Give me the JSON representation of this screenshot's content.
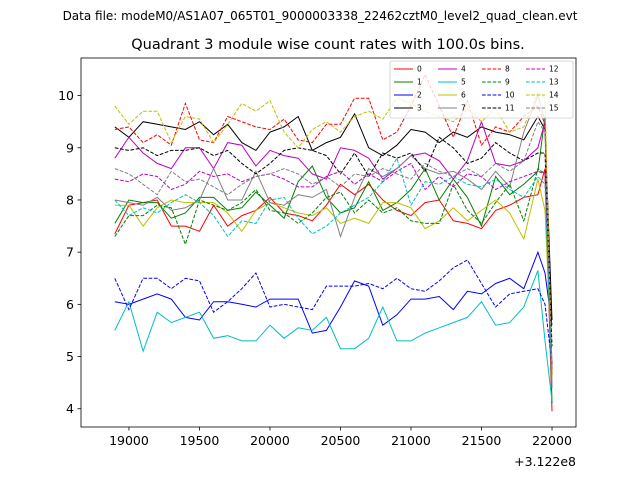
{
  "figure": {
    "suptitle": "Data file: modeM0/AS1A07_065T01_9000003338_22462cztM0_level2_quad_clean.evt"
  },
  "chart_data": {
    "type": "line",
    "title": "Quadrant 3 module wise count rates with 100.0s bins.",
    "xlabel": "",
    "ylabel": "",
    "x_offset_label": "+3.122e8",
    "xlim": [
      18660,
      22170
    ],
    "ylim": [
      3.65,
      10.72
    ],
    "xticks": [
      19000,
      19500,
      20000,
      20500,
      21000,
      21500,
      22000
    ],
    "xtick_labels": [
      "19000",
      "19500",
      "20000",
      "20500",
      "21000",
      "21500",
      "22000"
    ],
    "yticks": [
      4,
      5,
      6,
      7,
      8,
      9,
      10
    ],
    "ytick_labels": [
      "4",
      "5",
      "6",
      "7",
      "8",
      "9",
      "10"
    ],
    "grid": false,
    "legend_position": "top-right",
    "x": [
      18900,
      19000,
      19100,
      19200,
      19300,
      19400,
      19500,
      19600,
      19700,
      19800,
      19900,
      20000,
      20100,
      20200,
      20300,
      20400,
      20500,
      20600,
      20700,
      20800,
      20900,
      21000,
      21100,
      21200,
      21300,
      21400,
      21500,
      21600,
      21700,
      21800,
      21900,
      21950,
      22000
    ],
    "series": [
      {
        "name": "0",
        "color": "#ff0000",
        "dash": "solid",
        "values": [
          7.35,
          7.9,
          7.95,
          8.0,
          7.5,
          7.5,
          7.4,
          7.9,
          7.5,
          7.7,
          7.8,
          8.05,
          7.75,
          7.7,
          7.6,
          7.9,
          8.3,
          8.1,
          8.3,
          8.0,
          7.8,
          7.7,
          7.95,
          8.0,
          7.6,
          7.55,
          7.45,
          7.8,
          7.9,
          8.05,
          8.1,
          8.6,
          3.95
        ]
      },
      {
        "name": "1",
        "color": "#008000",
        "dash": "solid",
        "values": [
          7.55,
          8.0,
          7.95,
          7.95,
          7.65,
          7.75,
          8.05,
          8.05,
          7.8,
          7.85,
          8.15,
          7.9,
          7.65,
          8.35,
          8.65,
          8.05,
          7.75,
          7.85,
          8.35,
          7.8,
          7.95,
          8.2,
          8.6,
          8.0,
          8.4,
          8.05,
          7.5,
          8.45,
          8.1,
          8.3,
          8.55,
          9.6,
          4.1
        ]
      },
      {
        "name": "2",
        "color": "#0000ff",
        "dash": "solid",
        "values": [
          6.05,
          6.0,
          6.1,
          6.2,
          6.1,
          5.75,
          5.7,
          6.05,
          6.05,
          6.0,
          5.95,
          6.1,
          6.1,
          6.1,
          5.45,
          5.5,
          5.95,
          6.45,
          6.35,
          5.6,
          5.8,
          6.1,
          6.1,
          6.15,
          5.9,
          6.25,
          6.2,
          6.4,
          6.5,
          6.3,
          7.0,
          6.6,
          5.6
        ]
      },
      {
        "name": "3",
        "color": "#000000",
        "dash": "solid",
        "values": [
          9.4,
          9.2,
          9.5,
          9.45,
          9.4,
          9.35,
          9.5,
          9.25,
          9.45,
          9.1,
          8.95,
          9.3,
          9.4,
          9.6,
          8.95,
          9.1,
          9.2,
          9.65,
          9.0,
          8.85,
          9.05,
          9.35,
          9.3,
          9.1,
          9.3,
          9.2,
          9.4,
          9.3,
          9.25,
          9.15,
          9.6,
          9.35,
          5.7
        ]
      },
      {
        "name": "4",
        "color": "#c000c0",
        "dash": "solid",
        "values": [
          8.8,
          9.2,
          8.9,
          8.7,
          8.6,
          9.0,
          9.0,
          8.6,
          9.1,
          9.05,
          8.65,
          8.95,
          8.85,
          8.8,
          8.5,
          8.4,
          9.0,
          8.95,
          8.8,
          8.4,
          8.6,
          8.85,
          8.9,
          8.75,
          8.4,
          8.75,
          9.5,
          8.7,
          8.65,
          8.75,
          9.0,
          9.5,
          4.8
        ]
      },
      {
        "name": "5",
        "color": "#00bfbf",
        "dash": "solid",
        "values": [
          5.5,
          6.05,
          5.1,
          5.85,
          5.65,
          5.75,
          5.85,
          5.35,
          5.4,
          5.3,
          5.3,
          5.6,
          5.35,
          5.55,
          5.5,
          5.75,
          5.15,
          5.15,
          5.35,
          5.95,
          5.3,
          5.3,
          5.45,
          5.55,
          5.65,
          5.75,
          6.05,
          5.6,
          5.65,
          5.95,
          6.65,
          5.3,
          4.15
        ]
      },
      {
        "name": "6",
        "color": "#bfbf00",
        "dash": "solid",
        "values": [
          7.9,
          7.9,
          7.5,
          7.85,
          8.0,
          7.95,
          7.95,
          7.95,
          7.75,
          7.4,
          7.8,
          7.95,
          7.85,
          7.75,
          7.7,
          7.85,
          7.55,
          7.65,
          7.55,
          7.95,
          7.95,
          7.85,
          7.45,
          7.6,
          7.85,
          7.6,
          7.8,
          8.0,
          7.75,
          7.25,
          8.4,
          7.8,
          4.75
        ]
      },
      {
        "name": "7",
        "color": "#808080",
        "dash": "solid",
        "values": [
          8.0,
          7.95,
          7.9,
          8.05,
          7.8,
          7.85,
          8.0,
          8.6,
          8.0,
          8.0,
          8.55,
          7.95,
          7.9,
          8.1,
          8.05,
          8.2,
          7.3,
          8.05,
          8.6,
          8.45,
          8.6,
          8.85,
          8.6,
          8.5,
          8.55,
          8.4,
          8.2,
          8.55,
          8.25,
          9.3,
          10.0,
          9.5,
          4.4
        ]
      },
      {
        "name": "8",
        "color": "#ff0000",
        "dash": "dashed",
        "values": [
          9.35,
          9.4,
          9.1,
          9.25,
          9.05,
          9.85,
          9.15,
          9.1,
          9.6,
          9.5,
          9.4,
          9.35,
          9.55,
          9.15,
          9.1,
          9.45,
          9.45,
          9.95,
          9.95,
          9.15,
          9.3,
          9.8,
          10.4,
          9.8,
          9.2,
          9.9,
          9.05,
          9.4,
          9.3,
          9.6,
          9.8,
          9.45,
          4.65
        ]
      },
      {
        "name": "9",
        "color": "#008000",
        "dash": "dashed",
        "values": [
          7.3,
          7.7,
          7.7,
          7.9,
          7.85,
          7.15,
          8.0,
          7.9,
          7.8,
          7.95,
          8.2,
          7.8,
          7.75,
          7.55,
          7.75,
          8.05,
          8.15,
          7.75,
          8.0,
          7.75,
          7.85,
          7.6,
          7.55,
          7.55,
          8.3,
          7.8,
          7.55,
          7.95,
          8.3,
          7.6,
          8.6,
          8.5,
          4.75
        ]
      },
      {
        "name": "10",
        "color": "#0000ff",
        "dash": "dashed",
        "values": [
          6.5,
          5.9,
          6.5,
          6.5,
          6.3,
          6.5,
          6.45,
          5.85,
          6.05,
          6.3,
          6.6,
          5.95,
          6.0,
          5.95,
          5.9,
          6.35,
          6.35,
          6.35,
          6.4,
          6.3,
          6.5,
          6.3,
          6.25,
          6.45,
          6.7,
          6.85,
          6.4,
          5.95,
          6.2,
          6.25,
          6.3,
          6.0,
          4.85
        ]
      },
      {
        "name": "11",
        "color": "#000000",
        "dash": "dashed",
        "values": [
          9.0,
          8.95,
          9.0,
          8.85,
          8.95,
          8.95,
          9.0,
          8.85,
          8.95,
          8.7,
          8.5,
          8.7,
          8.95,
          9.0,
          8.95,
          8.85,
          8.5,
          8.9,
          8.45,
          8.9,
          8.8,
          8.9,
          8.55,
          9.2,
          9.0,
          8.7,
          8.8,
          9.1,
          8.9,
          8.75,
          8.9,
          8.9,
          5.2
        ]
      },
      {
        "name": "12",
        "color": "#c000c0",
        "dash": "dashed",
        "values": [
          8.4,
          8.35,
          8.5,
          8.45,
          8.2,
          8.3,
          8.55,
          8.45,
          8.5,
          8.35,
          8.45,
          8.5,
          8.4,
          8.25,
          8.25,
          8.45,
          8.55,
          8.3,
          8.5,
          8.35,
          8.55,
          8.7,
          8.2,
          8.45,
          8.25,
          8.5,
          8.45,
          8.2,
          8.35,
          8.45,
          8.55,
          8.5,
          4.7
        ]
      },
      {
        "name": "13",
        "color": "#00bfbf",
        "dash": "dashed",
        "values": [
          8.0,
          7.7,
          7.85,
          7.75,
          7.95,
          8.1,
          7.95,
          7.7,
          7.3,
          7.6,
          7.55,
          8.0,
          8.05,
          7.65,
          7.35,
          7.5,
          7.75,
          7.9,
          8.05,
          8.35,
          8.8,
          7.9,
          8.35,
          8.3,
          8.45,
          8.3,
          8.25,
          8.4,
          8.2,
          8.05,
          8.45,
          8.3,
          4.45
        ]
      },
      {
        "name": "14",
        "color": "#bfbf00",
        "dash": "dashed",
        "values": [
          9.8,
          9.45,
          9.7,
          9.7,
          9.1,
          9.6,
          9.55,
          9.1,
          9.45,
          9.85,
          9.7,
          9.9,
          9.3,
          9.0,
          9.35,
          9.5,
          9.3,
          9.6,
          9.7,
          9.55,
          9.95,
          9.85,
          9.7,
          9.6,
          9.5,
          9.75,
          9.5,
          9.75,
          9.3,
          9.4,
          10.05,
          9.95,
          4.6
        ]
      },
      {
        "name": "15",
        "color": "#808080",
        "dash": "dashed",
        "values": [
          8.6,
          8.5,
          8.3,
          8.1,
          8.55,
          8.35,
          8.4,
          8.25,
          8.1,
          8.3,
          8.45,
          8.5,
          8.6,
          8.5,
          8.3,
          8.45,
          8.25,
          8.5,
          8.45,
          8.6,
          8.5,
          8.4,
          8.7,
          8.55,
          8.45,
          8.6,
          8.45,
          8.7,
          8.55,
          8.75,
          9.5,
          9.3,
          4.4
        ]
      }
    ]
  }
}
